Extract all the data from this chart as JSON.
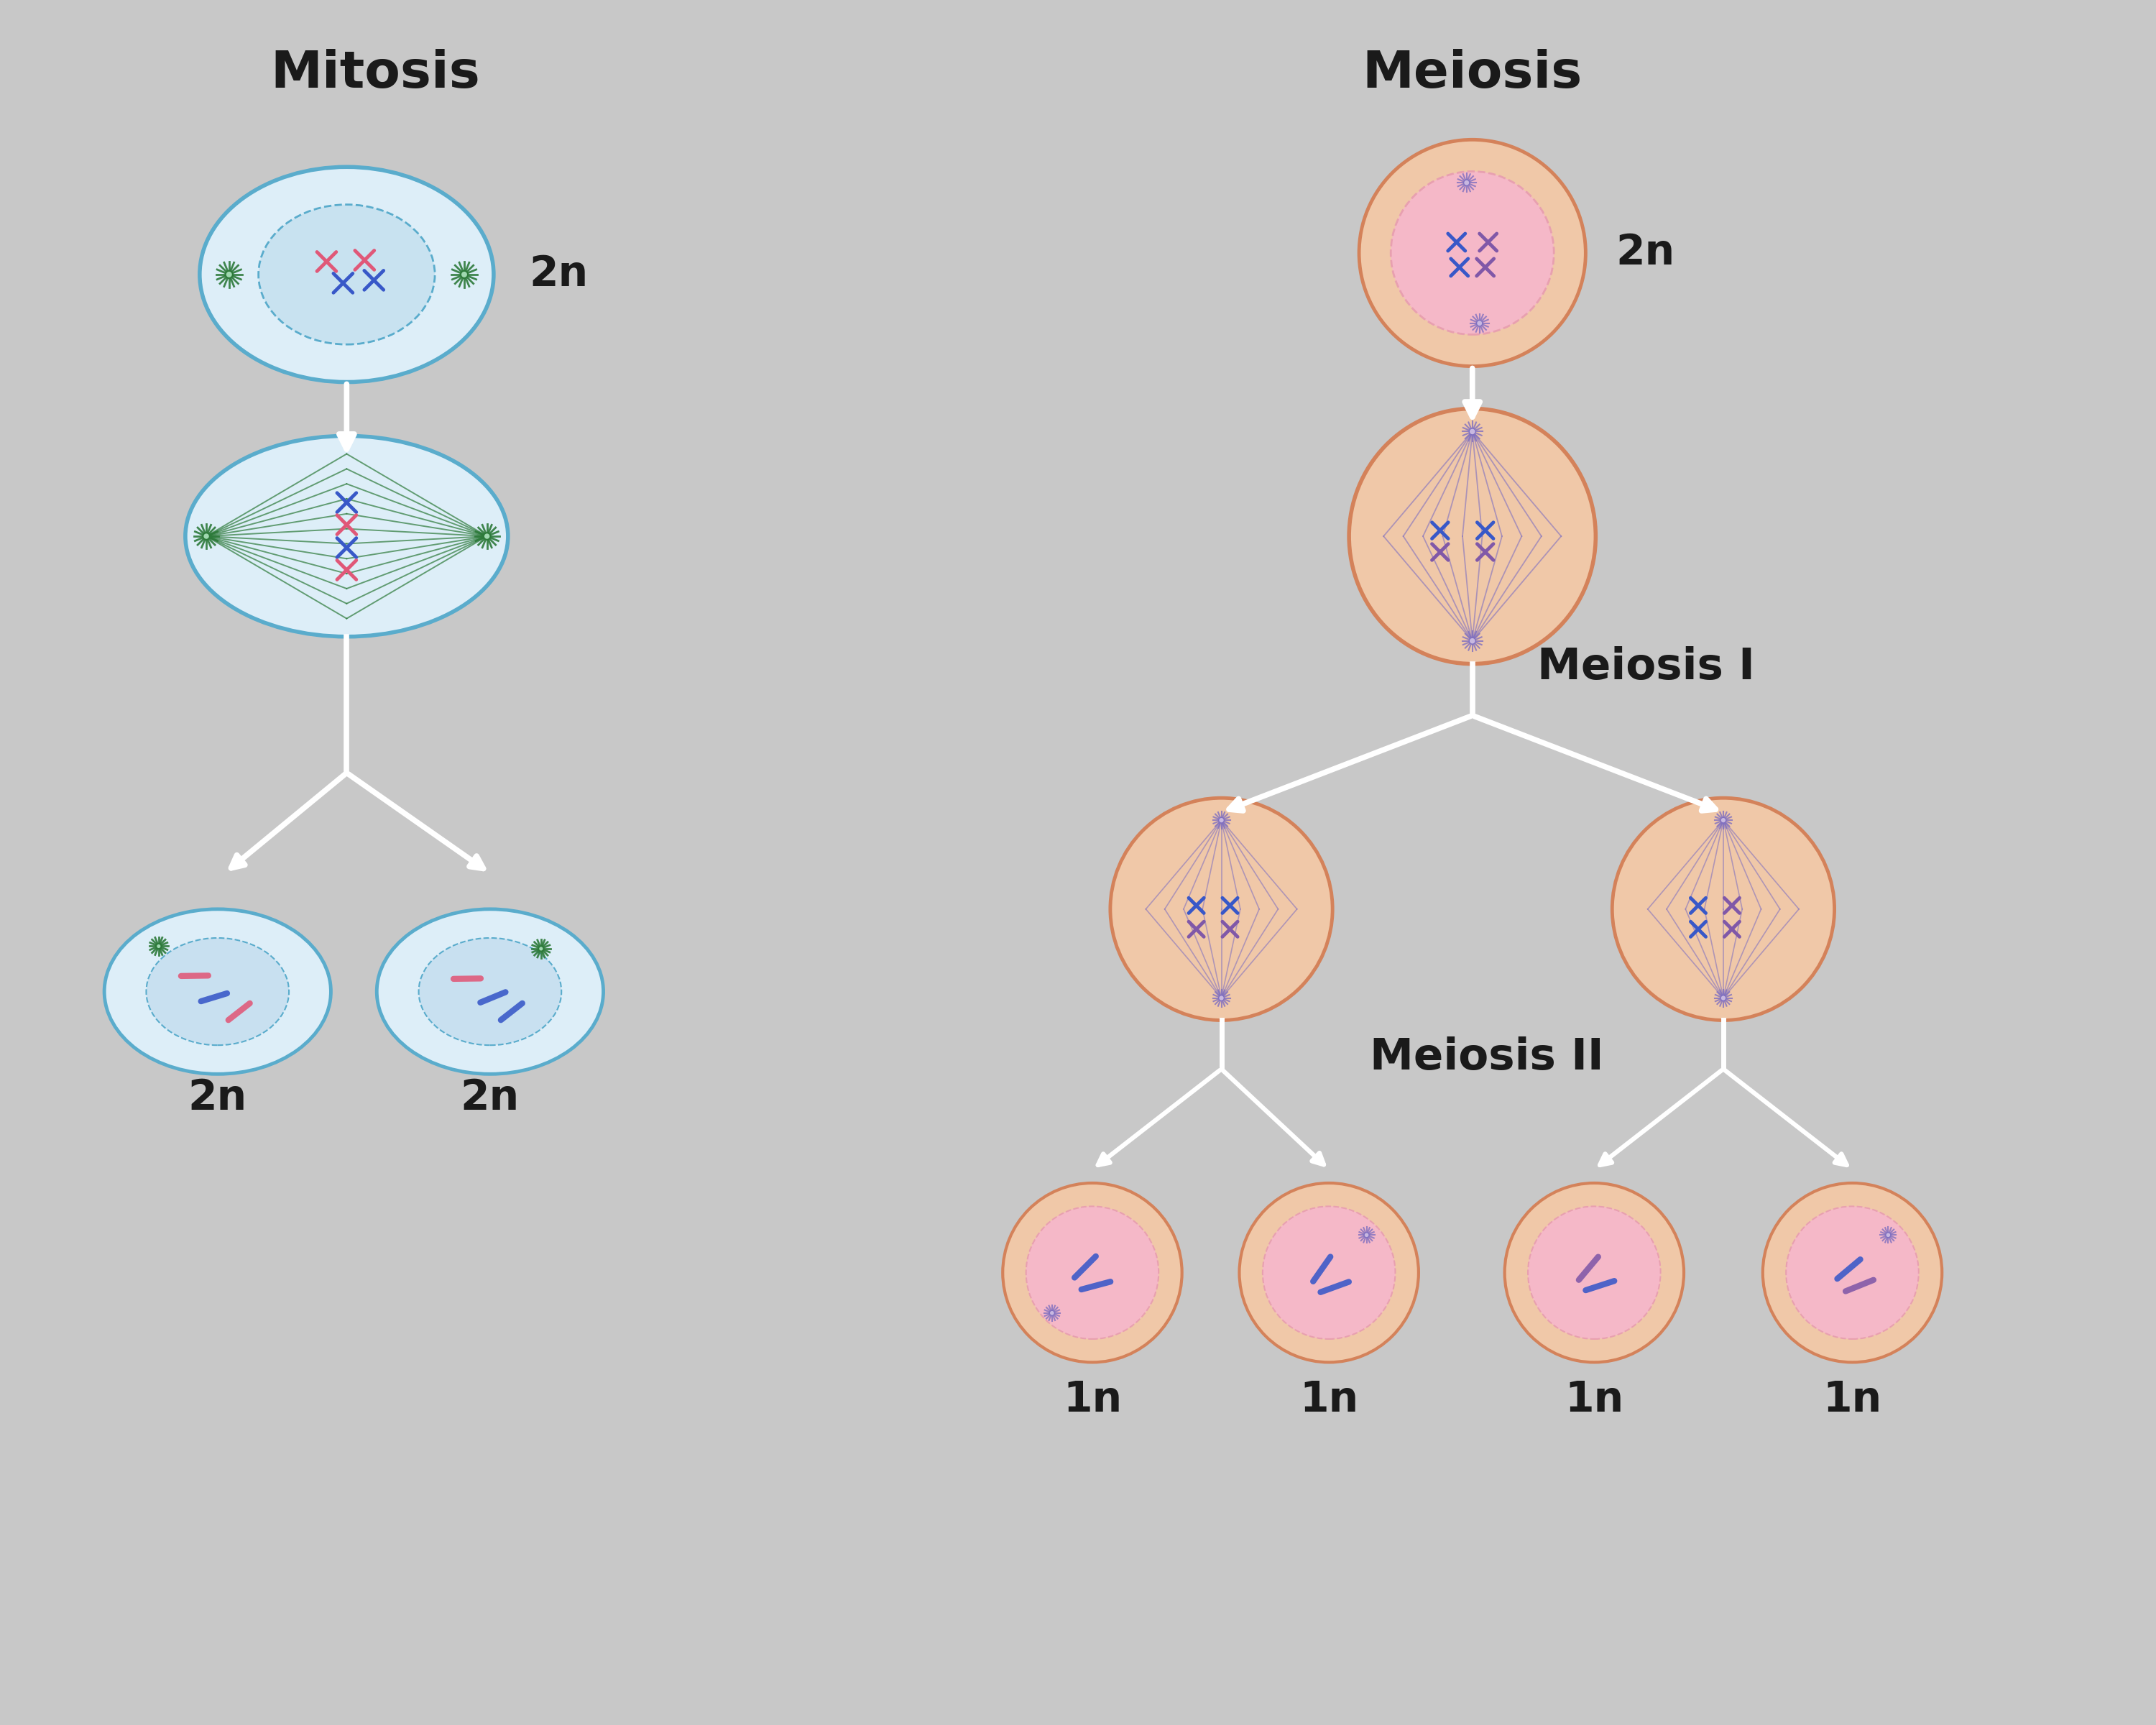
{
  "background_color": "#c8c8c8",
  "title_mitosis": "Mitosis",
  "title_meiosis": "Meiosis",
  "label_meiosis_I": "Meiosis I",
  "label_meiosis_II": "Meiosis II",
  "label_2n": "2n",
  "label_1n": "1n",
  "mitosis_cell_color": "#ddeef8",
  "mitosis_cell_border": "#5aaccc",
  "mitosis_nucleus_color": "#c8e4f0",
  "mitosis_spindle_color": "#2d7a3a",
  "meiosis_cell_outer": "#f0c8a8",
  "meiosis_cell_inner": "#f5b8c8",
  "meiosis_cell_border": "#d4825a",
  "meiosis_nucleus_border": "#e8a0b0",
  "meiosis_spindle_color": "#8070c0",
  "chr_red": "#e05878",
  "chr_blue": "#3858c8",
  "chr_purple": "#8058a8",
  "arrow_color": "#ffffff",
  "text_color": "#1a1a1a",
  "title_fontsize": 52,
  "label_fontsize": 44,
  "ploidy_fontsize": 42
}
